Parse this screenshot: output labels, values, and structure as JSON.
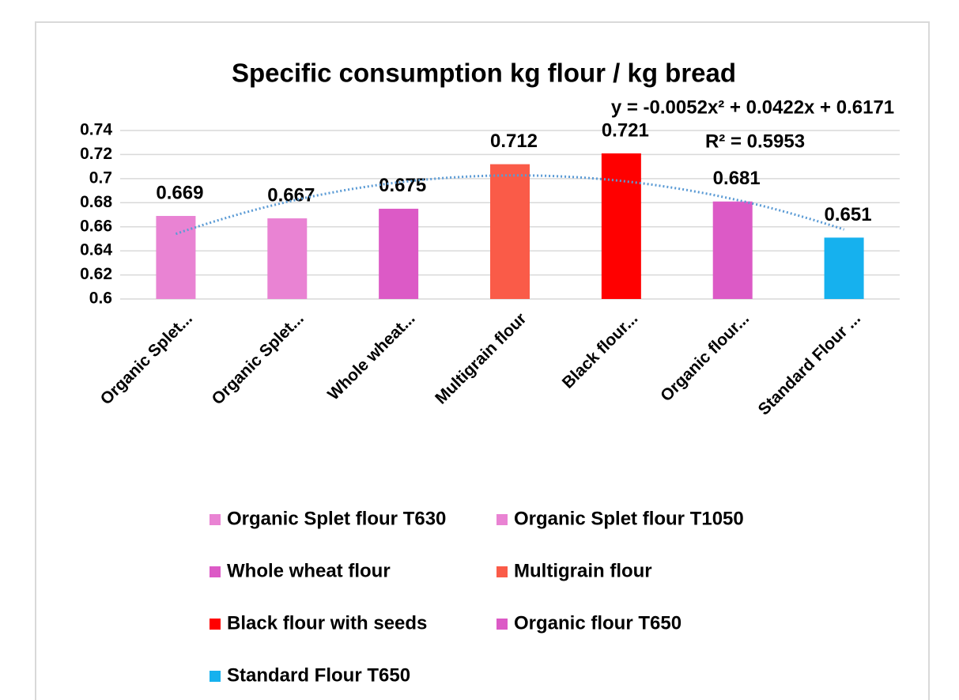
{
  "chart_data": {
    "type": "bar",
    "title": "Specific consumption kg flour / kg bread",
    "categories": [
      "Organic Splet...",
      "Organic Splet...",
      "Whole wheat...",
      "Multigrain flour",
      "Black flour...",
      "Organic flour...",
      "Standard Flour ..."
    ],
    "values": [
      0.669,
      0.667,
      0.675,
      0.712,
      0.721,
      0.681,
      0.651
    ],
    "colors": [
      "#e983d3",
      "#e983d3",
      "#dc5ac6",
      "#fa5b48",
      "#ff0000",
      "#dc5ac6",
      "#16b1ee"
    ],
    "legend": [
      "Organic Splet flour T630",
      "Organic Splet flour T1050",
      "Whole wheat flour",
      "Multigrain flour",
      "Black flour with seeds",
      "Organic flour  T650",
      "Standard Flour T650"
    ],
    "ylim": [
      0.6,
      0.74
    ],
    "yticks": [
      0.6,
      0.62,
      0.64,
      0.66,
      0.68,
      0.7,
      0.72,
      0.74
    ],
    "grid": true,
    "trendline": {
      "type": "polynomial",
      "color": "#5b9bd5",
      "coefficients": [
        -0.0052,
        0.0422,
        0.6171
      ],
      "equation": "y = -0.0052x² + 0.0422x + 0.6171",
      "r_squared": "R² = 0.5953"
    }
  }
}
